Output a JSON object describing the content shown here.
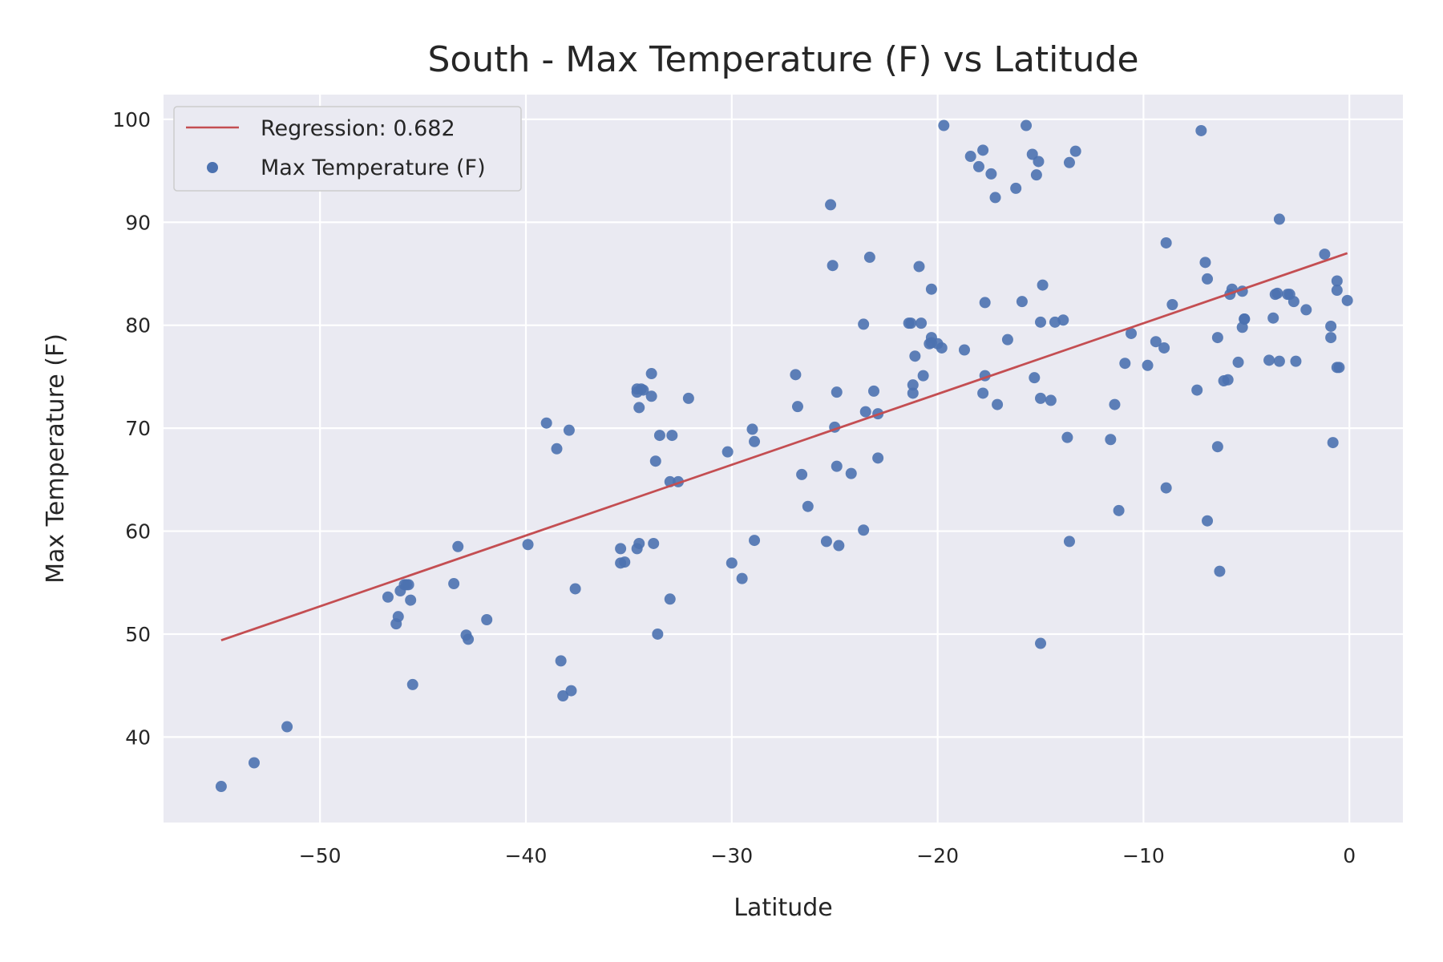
{
  "chart_data": {
    "type": "scatter",
    "title": "South - Max Temperature (F) vs Latitude",
    "xlabel": "Latitude",
    "ylabel": "Max Temperature (F)",
    "xlim": [
      -57.6,
      2.6
    ],
    "ylim": [
      31.7,
      102.4
    ],
    "xticks": [
      -50,
      -40,
      -30,
      -20,
      -10,
      0
    ],
    "yticks": [
      40,
      50,
      60,
      70,
      80,
      90,
      100
    ],
    "grid": true,
    "legend_position": "top-left",
    "colors": {
      "background": "#eaeaf2",
      "grid": "#ffffff",
      "points": "#4c72b0",
      "regression": "#c44e52"
    },
    "series": [
      {
        "name": "Max Temperature (F)",
        "kind": "scatter",
        "x": [
          -54.8,
          -53.2,
          -51.6,
          -46.7,
          -46.1,
          -46.3,
          -46.2,
          -45.9,
          -45.8,
          -45.7,
          -45.5,
          -45.6,
          -43.5,
          -43.3,
          -42.9,
          -42.8,
          -41.9,
          -39.9,
          -39.0,
          -38.5,
          -38.3,
          -38.2,
          -37.9,
          -37.8,
          -37.6,
          -35.4,
          -35.4,
          -35.2,
          -34.6,
          -34.5,
          -34.6,
          -34.5,
          -34.3,
          -34.6,
          -34.4,
          -33.9,
          -33.9,
          -33.8,
          -33.7,
          -33.6,
          -33.5,
          -33.0,
          -33.0,
          -32.9,
          -32.6,
          -32.1,
          -30.2,
          -30.0,
          -29.5,
          -29.0,
          -28.9,
          -28.9,
          -26.9,
          -26.8,
          -26.6,
          -26.3,
          -25.4,
          -25.2,
          -25.1,
          -25.0,
          -24.9,
          -24.9,
          -24.8,
          -24.2,
          -23.6,
          -23.6,
          -23.5,
          -23.3,
          -23.1,
          -22.9,
          -22.9,
          -21.4,
          -21.3,
          -21.2,
          -21.2,
          -21.1,
          -20.9,
          -20.8,
          -20.7,
          -20.4,
          -20.3,
          -20.3,
          -20.3,
          -20.0,
          -19.8,
          -19.7,
          -18.7,
          -18.4,
          -18.0,
          -17.8,
          -17.8,
          -17.7,
          -17.7,
          -17.4,
          -17.2,
          -17.1,
          -16.6,
          -16.2,
          -15.9,
          -15.7,
          -15.4,
          -15.3,
          -15.2,
          -15.1,
          -15.0,
          -15.0,
          -15.0,
          -14.9,
          -14.5,
          -14.3,
          -13.9,
          -13.7,
          -13.6,
          -13.6,
          -13.3,
          -11.6,
          -11.4,
          -11.2,
          -10.9,
          -10.6,
          -9.8,
          -9.4,
          -9.0,
          -8.9,
          -8.9,
          -8.6,
          -7.4,
          -7.2,
          -7.0,
          -6.9,
          -6.9,
          -6.4,
          -6.4,
          -6.3,
          -6.1,
          -5.9,
          -5.8,
          -5.7,
          -5.4,
          -5.2,
          -5.2,
          -5.1,
          -5.1,
          -3.9,
          -3.7,
          -3.6,
          -3.5,
          -3.4,
          -3.4,
          -3.0,
          -2.9,
          -2.7,
          -2.6,
          -2.1,
          -1.2,
          -0.9,
          -0.9,
          -0.8,
          -0.6,
          -0.6,
          -0.6,
          -0.5,
          -0.1
        ],
        "y": [
          35.2,
          37.5,
          41.0,
          53.6,
          54.2,
          51.0,
          51.7,
          54.8,
          54.8,
          54.8,
          45.1,
          53.3,
          54.9,
          58.5,
          49.9,
          49.5,
          51.4,
          58.7,
          70.5,
          68.0,
          47.4,
          44.0,
          69.8,
          44.5,
          54.4,
          58.3,
          56.9,
          57.0,
          58.3,
          72.0,
          73.8,
          58.8,
          73.7,
          73.5,
          73.8,
          75.3,
          73.1,
          58.8,
          66.8,
          50.0,
          69.3,
          64.8,
          53.4,
          69.3,
          64.8,
          72.9,
          67.7,
          56.9,
          55.4,
          69.9,
          59.1,
          68.7,
          75.2,
          72.1,
          65.5,
          62.4,
          59.0,
          91.7,
          85.8,
          70.1,
          73.5,
          66.3,
          58.6,
          65.6,
          60.1,
          80.1,
          71.6,
          86.6,
          73.6,
          67.1,
          71.4,
          80.2,
          80.2,
          74.2,
          73.4,
          77.0,
          85.7,
          80.2,
          75.1,
          78.2,
          78.3,
          78.8,
          83.5,
          78.2,
          77.8,
          99.4,
          77.6,
          96.4,
          95.4,
          97.0,
          73.4,
          75.1,
          82.2,
          94.7,
          92.4,
          72.3,
          78.6,
          93.3,
          82.3,
          99.4,
          96.6,
          74.9,
          94.6,
          95.9,
          80.3,
          72.9,
          49.1,
          83.9,
          72.7,
          80.3,
          80.5,
          69.1,
          59.0,
          95.8,
          96.9,
          68.9,
          72.3,
          62.0,
          76.3,
          79.2,
          76.1,
          78.4,
          77.8,
          88.0,
          64.2,
          82.0,
          73.7,
          98.9,
          86.1,
          84.5,
          61.0,
          78.8,
          68.2,
          56.1,
          74.6,
          74.7,
          83.0,
          83.5,
          76.4,
          83.3,
          79.8,
          80.6,
          80.6,
          76.6,
          80.7,
          83.0,
          83.1,
          76.5,
          90.3,
          83.0,
          83.0,
          82.3,
          76.5,
          81.5,
          86.9,
          79.9,
          78.8,
          68.6,
          84.3,
          83.4,
          75.9,
          75.9,
          82.4
        ]
      },
      {
        "name": "Regression: 0.682",
        "kind": "line",
        "x": [
          -54.8,
          -0.1
        ],
        "y": [
          49.4,
          87.0
        ]
      }
    ]
  }
}
